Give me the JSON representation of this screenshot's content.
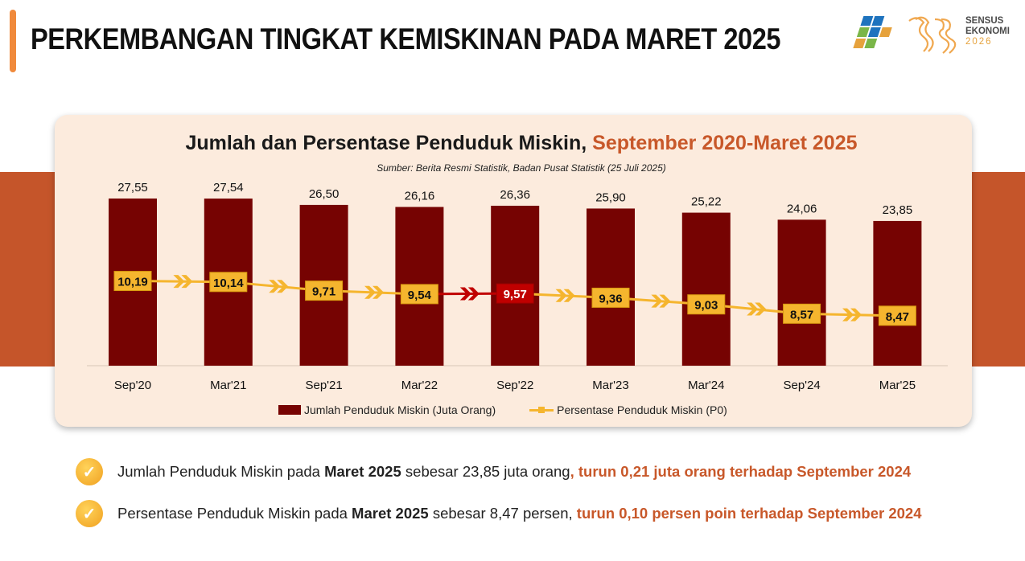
{
  "header": {
    "title": "PERKEMBANGAN TINGKAT KEMISKINAN PADA MARET 2025"
  },
  "logo": {
    "icon": "bps-logo-icon",
    "line1": "SENSUS",
    "line2": "EKONOMI",
    "year": "2026"
  },
  "chart_data": {
    "type": "bar",
    "title": "Jumlah dan Persentase Penduduk Miskin,",
    "title_highlight": "September 2020-Maret 2025",
    "source": "Sumber: Berita Resmi Statistik, Badan Pusat Statistik (25 Juli 2025)",
    "categories": [
      "Sep'20",
      "Mar'21",
      "Sep'21",
      "Mar'22",
      "Sep'22",
      "Mar'23",
      "Mar'24",
      "Sep'24",
      "Mar'25"
    ],
    "series": [
      {
        "name": "Jumlah Penduduk Miskin (Juta Orang)",
        "type": "bar",
        "color": "#760302",
        "values": [
          27.55,
          27.54,
          26.5,
          26.16,
          26.36,
          25.9,
          25.22,
          24.06,
          23.85
        ],
        "labels": [
          "27,55",
          "27,54",
          "26,50",
          "26,16",
          "26,36",
          "25,90",
          "25,22",
          "24,06",
          "23,85"
        ]
      },
      {
        "name": "Persentase Penduduk Miskin (P0)",
        "type": "line",
        "color": "#F5B52E",
        "values": [
          10.19,
          10.14,
          9.71,
          9.54,
          9.57,
          9.36,
          9.03,
          8.57,
          8.47
        ],
        "labels": [
          "10,19",
          "10,14",
          "9,71",
          "9,54",
          "9,57",
          "9,36",
          "9,03",
          "8,57",
          "8,47"
        ]
      }
    ],
    "highlight_category": "Sep'22",
    "highlight_color": "#C00000",
    "bar_axis_range": [
      0,
      30
    ],
    "line_axis_range": [
      6,
      18
    ],
    "legend_position": "bottom",
    "grid": false
  },
  "notes": [
    {
      "icon": "check-icon",
      "pre": "Jumlah Penduduk Miskin pada ",
      "bold": "Maret 2025",
      "mid": " sebesar 23,85 juta orang",
      "highlight": ", turun 0,21 juta orang terhadap September 2024"
    },
    {
      "icon": "check-icon",
      "pre": "Persentase Penduduk Miskin pada ",
      "bold": "Maret 2025",
      "mid": " sebesar 8,47 persen, ",
      "highlight": "turun 0,10 persen poin terhadap September 2024"
    }
  ],
  "colors": {
    "accent": "#F08A3C",
    "stripe": "#C5552A",
    "card": "#FCEBDD",
    "bar": "#760302",
    "line": "#F5B52E",
    "highlight_text": "#C8582A"
  }
}
